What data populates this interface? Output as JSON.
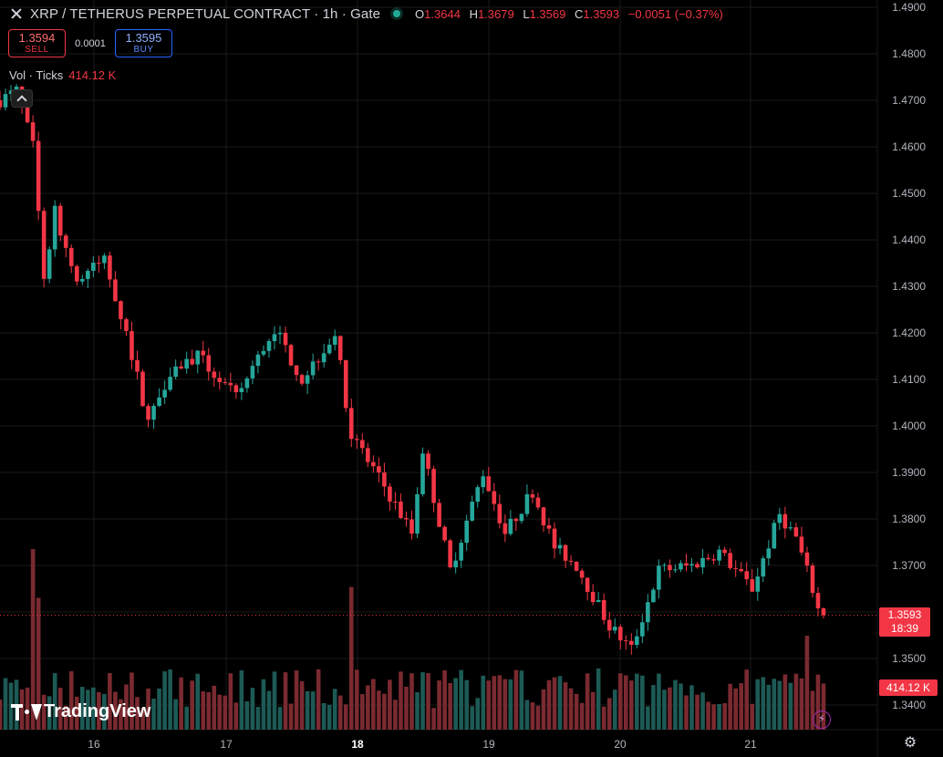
{
  "legend": {
    "title": "XRP / TETHERUS PERPETUAL CONTRACT · 1h · Gate",
    "o_label": "O",
    "o": "1.3644",
    "h_label": "H",
    "h": "1.3679",
    "l_label": "L",
    "l": "1.3569",
    "c_label": "C",
    "c": "1.3593",
    "change": "−0.0051 (−0.37%)"
  },
  "trade": {
    "sell_price": "1.3594",
    "sell_label": "SELL",
    "spread": "0.0001",
    "buy_price": "1.3595",
    "buy_label": "BUY"
  },
  "volume_legend": {
    "label": "Vol · Ticks",
    "value": "414.12 K"
  },
  "price_label": {
    "price": "1.3593",
    "countdown": "18:39"
  },
  "volume_label": "414.12 K",
  "brand": "TradingView",
  "icons": [
    "close-icon",
    "collapse-chevron-icon",
    "lightning-icon",
    "settings-gear-icon",
    "tradingview-logo-icon"
  ],
  "colors": {
    "up": "#26a69a",
    "down": "#f23645",
    "background": "#000000"
  },
  "chart_data": {
    "type": "candlestick",
    "symbol": "XRP / TETHERUS PERPETUAL CONTRACT",
    "interval": "1h",
    "exchange": "Gate",
    "y_ticks": [
      "1.3400",
      "1.3500",
      "1.3600",
      "1.3700",
      "1.3800",
      "1.3900",
      "1.4000",
      "1.4100",
      "1.4200",
      "1.4300",
      "1.4400",
      "1.4500",
      "1.4600",
      "1.4700",
      "1.4800",
      "1.4900"
    ],
    "x_ticks": [
      "16",
      "17",
      "18",
      "19",
      "20",
      "21"
    ],
    "ylim": [
      1.3345,
      1.4905
    ],
    "last_price": 1.3593,
    "key_points": [
      {
        "t": 0,
        "p": 1.47
      },
      {
        "t": 3,
        "p": 1.472
      },
      {
        "t": 6,
        "p": 1.46
      },
      {
        "t": 8,
        "p": 1.432
      },
      {
        "t": 10,
        "p": 1.446
      },
      {
        "t": 14,
        "p": 1.431
      },
      {
        "t": 19,
        "p": 1.436
      },
      {
        "t": 23,
        "p": 1.42
      },
      {
        "t": 27,
        "p": 1.401
      },
      {
        "t": 31,
        "p": 1.412
      },
      {
        "t": 36,
        "p": 1.415
      },
      {
        "t": 43,
        "p": 1.406
      },
      {
        "t": 50,
        "p": 1.421
      },
      {
        "t": 55,
        "p": 1.41
      },
      {
        "t": 61,
        "p": 1.42
      },
      {
        "t": 64,
        "p": 1.398
      },
      {
        "t": 70,
        "p": 1.387
      },
      {
        "t": 75,
        "p": 1.377
      },
      {
        "t": 77,
        "p": 1.395
      },
      {
        "t": 82,
        "p": 1.369
      },
      {
        "t": 88,
        "p": 1.39
      },
      {
        "t": 92,
        "p": 1.377
      },
      {
        "t": 97,
        "p": 1.386
      },
      {
        "t": 101,
        "p": 1.374
      },
      {
        "t": 105,
        "p": 1.37
      },
      {
        "t": 111,
        "p": 1.357
      },
      {
        "t": 115,
        "p": 1.352
      },
      {
        "t": 120,
        "p": 1.369
      },
      {
        "t": 126,
        "p": 1.37
      },
      {
        "t": 131,
        "p": 1.373
      },
      {
        "t": 137,
        "p": 1.365
      },
      {
        "t": 142,
        "p": 1.381
      },
      {
        "t": 145,
        "p": 1.376
      },
      {
        "t": 148,
        "p": 1.365
      },
      {
        "t": 150,
        "p": 1.3593
      }
    ],
    "volume_spikes": [
      {
        "t": 6,
        "v": 1.0
      },
      {
        "t": 7,
        "v": 0.73
      },
      {
        "t": 64,
        "v": 0.79
      },
      {
        "t": 147,
        "v": 0.52
      }
    ]
  }
}
